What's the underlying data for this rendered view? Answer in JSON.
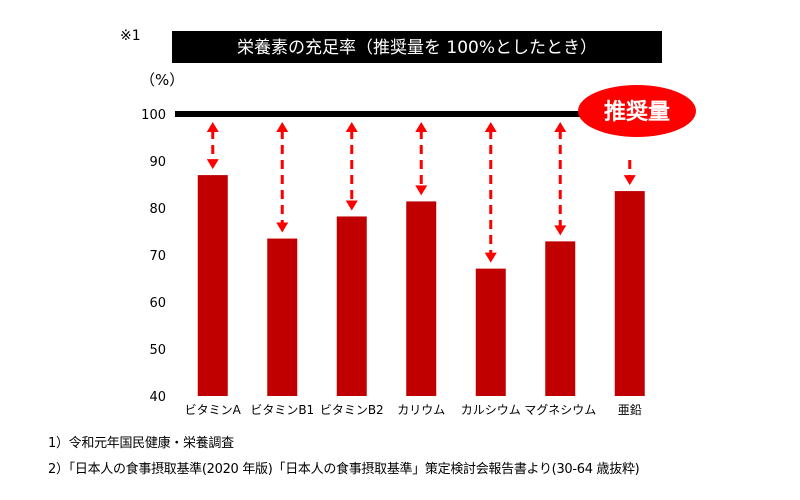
{
  "note_mark": "※1",
  "chart_data": {
    "type": "bar",
    "title": "栄養素の充足率（推奨量を 100%としたとき）",
    "ylabel": "（%）",
    "categories": [
      "ビタミンA",
      "ビタミンB1",
      "ビタミンB2",
      "カリウム",
      "カルシウム",
      "マグネシウム",
      "亜鉛"
    ],
    "values": [
      87,
      73.5,
      78.2,
      81.4,
      67.1,
      72.9,
      83.6
    ],
    "ylim": [
      40,
      100
    ],
    "yticks": [
      40,
      50,
      60,
      70,
      80,
      90,
      100
    ],
    "reference_line": {
      "value": 100,
      "label": "推奨量"
    },
    "grid": false,
    "colors": {
      "bar": "#c00000",
      "arrow": "#ff0000",
      "reference": "#000000",
      "badge": "#ff0000"
    }
  },
  "footnotes": [
    "1）令和元年国民健康・栄養調査",
    "2）「日本人の食事摂取基準(2020 年版)「日本人の食事摂取基準」策定検討会報告書より(30-64 歳抜粋)"
  ]
}
